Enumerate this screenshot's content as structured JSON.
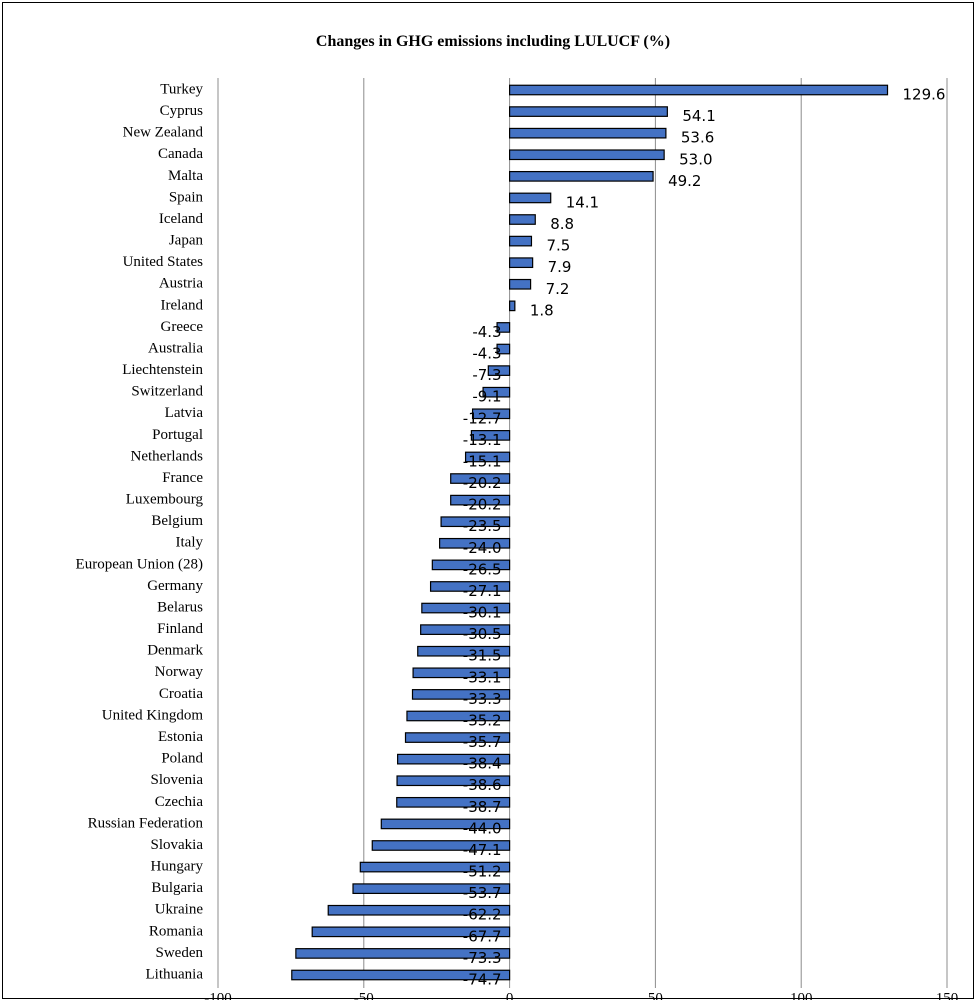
{
  "chart_data": {
    "type": "bar",
    "orientation": "horizontal",
    "title": "Changes in GHG emissions including LULUCF (%)",
    "xlabel": "",
    "ylabel": "",
    "xlim": [
      -100,
      150
    ],
    "xticks": [
      -100,
      -50,
      0,
      50,
      100,
      150
    ],
    "grid": true,
    "bar_color": "#4472C4",
    "categories": [
      "Turkey",
      "Cyprus",
      "New Zealand",
      "Canada",
      "Malta",
      "Spain",
      "Iceland",
      "Japan",
      "United States",
      "Austria",
      "Ireland",
      "Greece",
      "Australia",
      "Liechtenstein",
      "Switzerland",
      "Latvia",
      "Portugal",
      "Netherlands",
      "France",
      "Luxembourg",
      "Belgium",
      "Italy",
      "European Union (28)",
      "Germany",
      "Belarus",
      "Finland",
      "Denmark",
      "Norway",
      "Croatia",
      "United Kingdom",
      "Estonia",
      "Poland",
      "Slovenia",
      "Czechia",
      "Russian Federation",
      "Slovakia",
      "Hungary",
      "Bulgaria",
      "Ukraine",
      "Romania",
      "Sweden",
      "Lithuania"
    ],
    "values": [
      129.6,
      54.1,
      53.6,
      53.0,
      49.2,
      14.1,
      8.8,
      7.5,
      7.9,
      7.2,
      1.8,
      -4.3,
      -4.3,
      -7.3,
      -9.1,
      -12.7,
      -13.1,
      -15.1,
      -20.2,
      -20.2,
      -23.5,
      -24.0,
      -26.5,
      -27.1,
      -30.1,
      -30.5,
      -31.5,
      -33.1,
      -33.3,
      -35.2,
      -35.7,
      -38.4,
      -38.6,
      -38.7,
      -44.0,
      -47.1,
      -51.2,
      -53.7,
      -62.2,
      -67.7,
      -73.3,
      -74.7
    ],
    "labels": [
      "129.6",
      "54.1",
      "53.6",
      "53.0",
      "49.2",
      "14.1",
      "8.8",
      "7.5",
      "7.9",
      "7.2",
      "1.8",
      "-4.3",
      "-4.3",
      "-7.3",
      "-9.1",
      "-12.7",
      "-13.1",
      "-15.1",
      "-20.2",
      "-20.2",
      "-23.5",
      "-24.0",
      "-26.5",
      "-27.1",
      "-30.1",
      "-30.5",
      "-31.5",
      "-33.1",
      "-33.3",
      "-35.2",
      "-35.7",
      "-38.4",
      "-38.6",
      "-38.7",
      "-44.0",
      "-47.1",
      "-51.2",
      "-53.7",
      "-62.2",
      "-67.7",
      "-73.3",
      "-74.7"
    ]
  }
}
